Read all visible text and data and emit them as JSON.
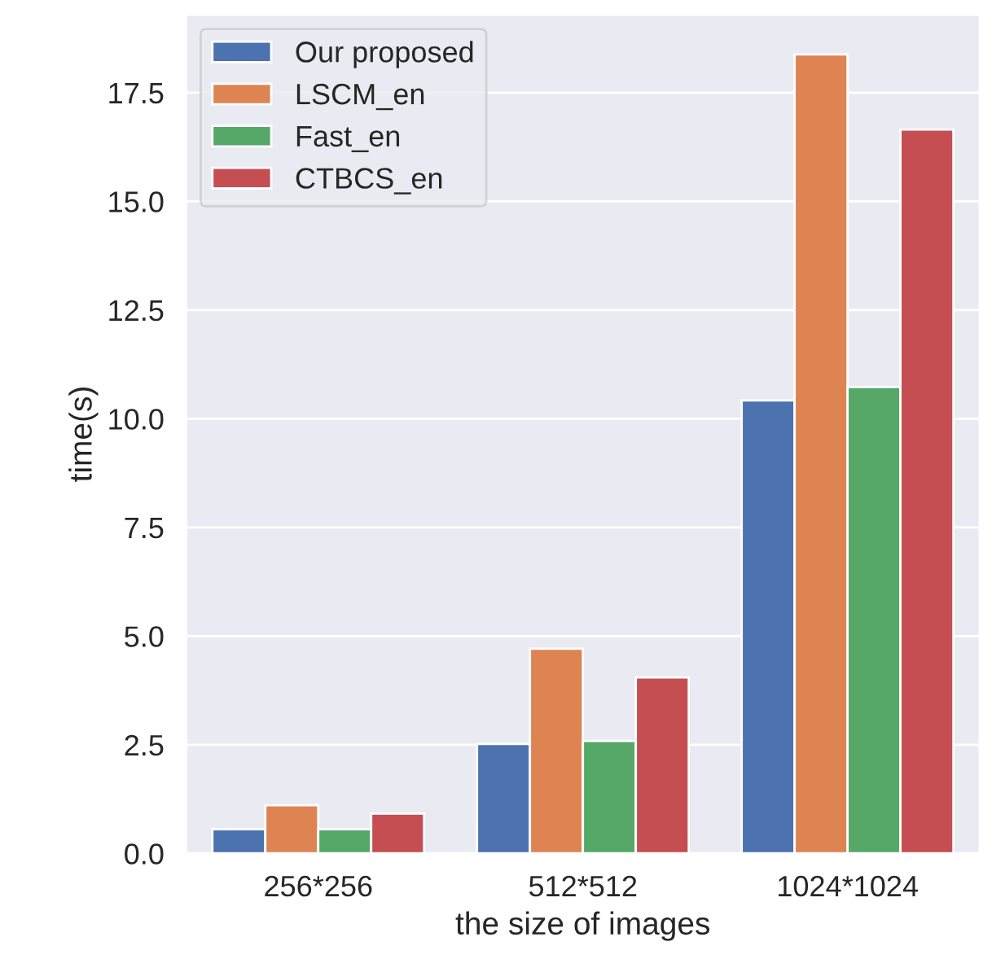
{
  "chart_data": {
    "type": "bar",
    "xlabel": "the size of images",
    "ylabel": "time(s)",
    "categories": [
      "256*256",
      "512*512",
      "1024*1024"
    ],
    "series": [
      {
        "name": "Our proposed",
        "color": "#4c72b0",
        "values": [
          0.56,
          2.52,
          10.42
        ]
      },
      {
        "name": "LSCM_en",
        "color": "#dd8452",
        "values": [
          1.11,
          4.71,
          18.38
        ]
      },
      {
        "name": "Fast_en",
        "color": "#55a868",
        "values": [
          0.56,
          2.59,
          10.73
        ]
      },
      {
        "name": "CTBCS_en",
        "color": "#c44e52",
        "values": [
          0.92,
          4.05,
          16.65
        ]
      }
    ],
    "ylim": [
      0,
      19.3
    ],
    "yticks": [
      {
        "value": 0,
        "label": "0.0"
      },
      2.5,
      {
        "value": 5,
        "label": "5.0"
      },
      7.5,
      {
        "value": 10,
        "label": "10.0"
      },
      12.5,
      {
        "value": 15,
        "label": "15.0"
      },
      17.5
    ],
    "grid": "y",
    "legend": "top left"
  }
}
